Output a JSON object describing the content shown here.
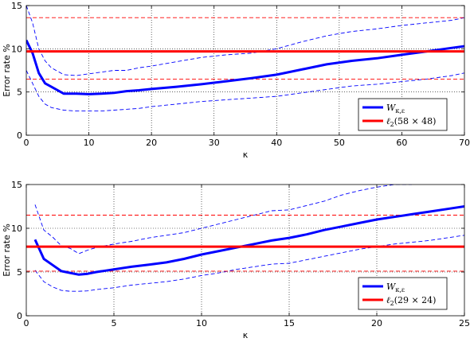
{
  "chart_data": [
    {
      "type": "line",
      "xlabel": "κ",
      "ylabel": "Error rate %",
      "xlim": [
        0,
        70
      ],
      "ylim": [
        0,
        15
      ],
      "xticks": [
        "0",
        "10",
        "20",
        "30",
        "40",
        "50",
        "60",
        "70"
      ],
      "yticks": [
        "0",
        "5",
        "10",
        "15"
      ],
      "grid": true,
      "legend_position": "lower-right",
      "series": [
        {
          "name": "W",
          "name_sub": "κ,ε",
          "color": "#0000ff",
          "style": "solid-thick",
          "x": [
            0,
            1,
            2,
            3,
            4,
            6,
            8,
            10,
            12,
            14,
            16,
            18,
            20,
            24,
            28,
            32,
            36,
            40,
            44,
            48,
            52,
            56,
            60,
            64,
            68,
            70
          ],
          "y": [
            11.0,
            9.5,
            7.2,
            6.0,
            5.6,
            4.8,
            4.8,
            4.75,
            4.8,
            4.9,
            5.1,
            5.2,
            5.35,
            5.6,
            5.9,
            6.25,
            6.6,
            7.0,
            7.6,
            8.2,
            8.6,
            8.9,
            9.3,
            9.7,
            10.1,
            10.3
          ]
        },
        {
          "name": "ℓ",
          "name_sub": "2",
          "name_args": "(58 × 48)",
          "color": "#ff0000",
          "style": "solid-thick",
          "x": [
            0,
            70
          ],
          "y": [
            9.7,
            9.7
          ]
        },
        {
          "color": "#0000ff",
          "style": "dashed",
          "x": [
            0,
            1,
            2,
            3,
            4,
            6,
            8,
            10,
            12,
            14,
            16,
            18,
            20,
            24,
            28,
            32,
            36,
            40,
            44,
            48,
            52,
            56,
            60,
            64,
            68,
            70
          ],
          "y": [
            15.0,
            13.0,
            10.0,
            8.6,
            7.8,
            7.0,
            6.9,
            7.1,
            7.3,
            7.5,
            7.5,
            7.8,
            8.0,
            8.5,
            9.0,
            9.3,
            9.5,
            10.0,
            10.8,
            11.5,
            12.0,
            12.3,
            12.7,
            13.0,
            13.3,
            13.6
          ]
        },
        {
          "color": "#0000ff",
          "style": "dashed",
          "x": [
            0,
            1,
            2,
            3,
            4,
            6,
            8,
            10,
            12,
            14,
            16,
            18,
            20,
            24,
            28,
            32,
            36,
            40,
            44,
            48,
            52,
            56,
            60,
            64,
            68,
            70
          ],
          "y": [
            7.5,
            6.0,
            4.5,
            3.6,
            3.2,
            2.9,
            2.8,
            2.8,
            2.8,
            2.9,
            3.0,
            3.1,
            3.3,
            3.6,
            3.9,
            4.1,
            4.3,
            4.5,
            4.9,
            5.3,
            5.7,
            5.9,
            6.2,
            6.5,
            6.9,
            7.2
          ]
        },
        {
          "color": "#ff0000",
          "style": "dashed",
          "x": [
            0,
            70
          ],
          "y": [
            13.6,
            13.6
          ]
        },
        {
          "color": "#ff0000",
          "style": "dashed",
          "x": [
            0,
            70
          ],
          "y": [
            6.5,
            6.5
          ]
        }
      ]
    },
    {
      "type": "line",
      "xlabel": "κ",
      "ylabel": "Error rate %",
      "xlim": [
        0,
        25
      ],
      "ylim": [
        0,
        15
      ],
      "xticks": [
        "0",
        "5",
        "10",
        "15",
        "20",
        "25"
      ],
      "yticks": [
        "0",
        "5",
        "10",
        "15"
      ],
      "grid": true,
      "legend_position": "lower-right",
      "series": [
        {
          "name": "W",
          "name_sub": "κ,ε",
          "color": "#0000ff",
          "style": "solid-thick",
          "x": [
            0.5,
            1.0,
            1.5,
            2.0,
            2.5,
            3.0,
            3.5,
            4.0,
            5.0,
            6.0,
            7.0,
            8.0,
            9.0,
            10.0,
            11.0,
            12.0,
            13.0,
            14.0,
            15.0,
            16.0,
            17.0,
            18.0,
            19.0,
            20.0,
            21.0,
            22.0,
            23.0,
            24.0,
            25.0
          ],
          "y": [
            8.7,
            6.5,
            5.8,
            5.1,
            4.9,
            4.7,
            4.8,
            5.0,
            5.3,
            5.6,
            5.85,
            6.1,
            6.5,
            7.0,
            7.4,
            7.8,
            8.2,
            8.6,
            8.9,
            9.3,
            9.8,
            10.2,
            10.6,
            11.0,
            11.3,
            11.6,
            11.9,
            12.2,
            12.5
          ]
        },
        {
          "name": "ℓ",
          "name_sub": "2",
          "name_args": "(29 × 24)",
          "color": "#ff0000",
          "style": "solid-thick",
          "x": [
            0,
            25
          ],
          "y": [
            7.9,
            7.9
          ]
        },
        {
          "color": "#0000ff",
          "style": "dashed",
          "x": [
            0.5,
            1.0,
            1.5,
            2.0,
            2.5,
            3.0,
            3.5,
            4.0,
            5.0,
            6.0,
            7.0,
            8.0,
            9.0,
            10.0,
            11.0,
            12.0,
            13.0,
            14.0,
            15.0,
            16.0,
            17.0,
            18.0,
            19.0,
            20.0,
            21.0,
            22.0
          ],
          "y": [
            12.7,
            9.8,
            9.0,
            8.0,
            7.7,
            7.1,
            7.5,
            7.8,
            8.2,
            8.5,
            8.9,
            9.2,
            9.5,
            10.0,
            10.5,
            11.0,
            11.5,
            12.0,
            12.1,
            12.6,
            13.1,
            13.8,
            14.3,
            14.7,
            15.0,
            15.0
          ]
        },
        {
          "color": "#0000ff",
          "style": "dashed",
          "x": [
            0.5,
            1.0,
            1.5,
            2.0,
            2.5,
            3.0,
            3.5,
            4.0,
            5.0,
            6.0,
            7.0,
            8.0,
            9.0,
            10.0,
            11.0,
            12.0,
            13.0,
            14.0,
            15.0,
            16.0,
            17.0,
            18.0,
            19.0,
            20.0,
            21.0,
            22.0,
            23.0,
            24.0,
            25.0
          ],
          "y": [
            5.2,
            3.9,
            3.3,
            2.9,
            2.8,
            2.8,
            2.85,
            3.0,
            3.2,
            3.5,
            3.7,
            3.9,
            4.2,
            4.6,
            4.9,
            5.3,
            5.6,
            5.9,
            6.0,
            6.4,
            6.8,
            7.2,
            7.6,
            7.9,
            8.2,
            8.4,
            8.6,
            8.9,
            9.2
          ]
        },
        {
          "color": "#ff0000",
          "style": "dashed",
          "x": [
            0,
            25
          ],
          "y": [
            11.5,
            11.5
          ]
        },
        {
          "color": "#ff0000",
          "style": "dashed",
          "x": [
            0,
            25
          ],
          "y": [
            5.1,
            5.1
          ]
        }
      ]
    }
  ]
}
